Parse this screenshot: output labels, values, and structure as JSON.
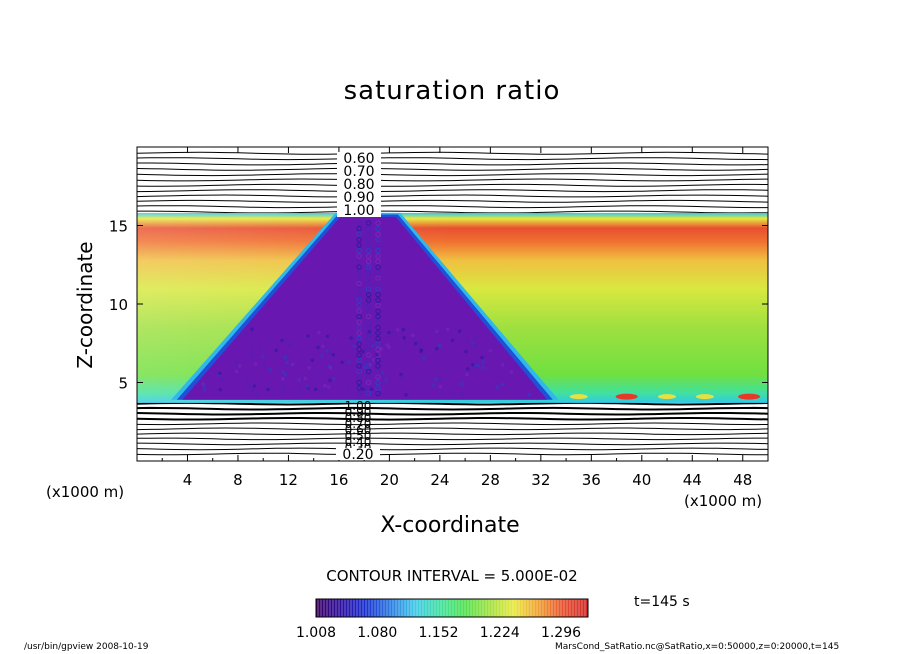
{
  "chart_data": {
    "type": "heatmap",
    "title": "saturation ratio",
    "xlabel": "X-coordinate",
    "ylabel": "Z-coordinate",
    "x_unit_label": "(x1000 m)",
    "xlim": [
      0,
      50
    ],
    "ylim": [
      0,
      20
    ],
    "x_ticks": [
      4,
      8,
      12,
      16,
      20,
      24,
      28,
      32,
      36,
      40,
      44,
      48
    ],
    "y_ticks": [
      5,
      10,
      15
    ],
    "contour_labels_upper": [
      "0.60",
      "0.70",
      "0.80",
      "0.90",
      "1.00"
    ],
    "contour_labels_lower": [
      "1.00",
      "0.90",
      "0.80",
      "0.70",
      "0.60",
      "0.50",
      "0.40",
      "0.30",
      "0.20"
    ],
    "contour_interval_text": "CONTOUR INTERVAL = 5.000E-02",
    "colorbar": {
      "tick_labels": [
        "1.008",
        "1.080",
        "1.152",
        "1.224",
        "1.296"
      ],
      "min": 1.008,
      "max": 1.296,
      "colors": [
        "#3b0060",
        "#2d0fa0",
        "#1830d0",
        "#2a7ae0",
        "#40c8e8",
        "#40e0a0",
        "#50e050",
        "#a0e040",
        "#e8e840",
        "#f0a030",
        "#e85030",
        "#d02828"
      ]
    },
    "time_text": "t=145 s",
    "cloud_region": {
      "z_top": 15.8,
      "peak_x": 18.3,
      "left_base_x": 3.6,
      "right_base_x": 32.5,
      "base_z": 4.0
    },
    "moist_layer": {
      "z_bottom": 3.7,
      "z_top": 15.8,
      "max_value": 1.296,
      "max_z": 14.2,
      "min_value": 1.008
    }
  },
  "footer": {
    "left": "/usr/bin/gpview  2008-10-19",
    "right": "MarsCond_SatRatio.nc@SatRatio,x=0:50000,z=0:20000,t=145"
  }
}
